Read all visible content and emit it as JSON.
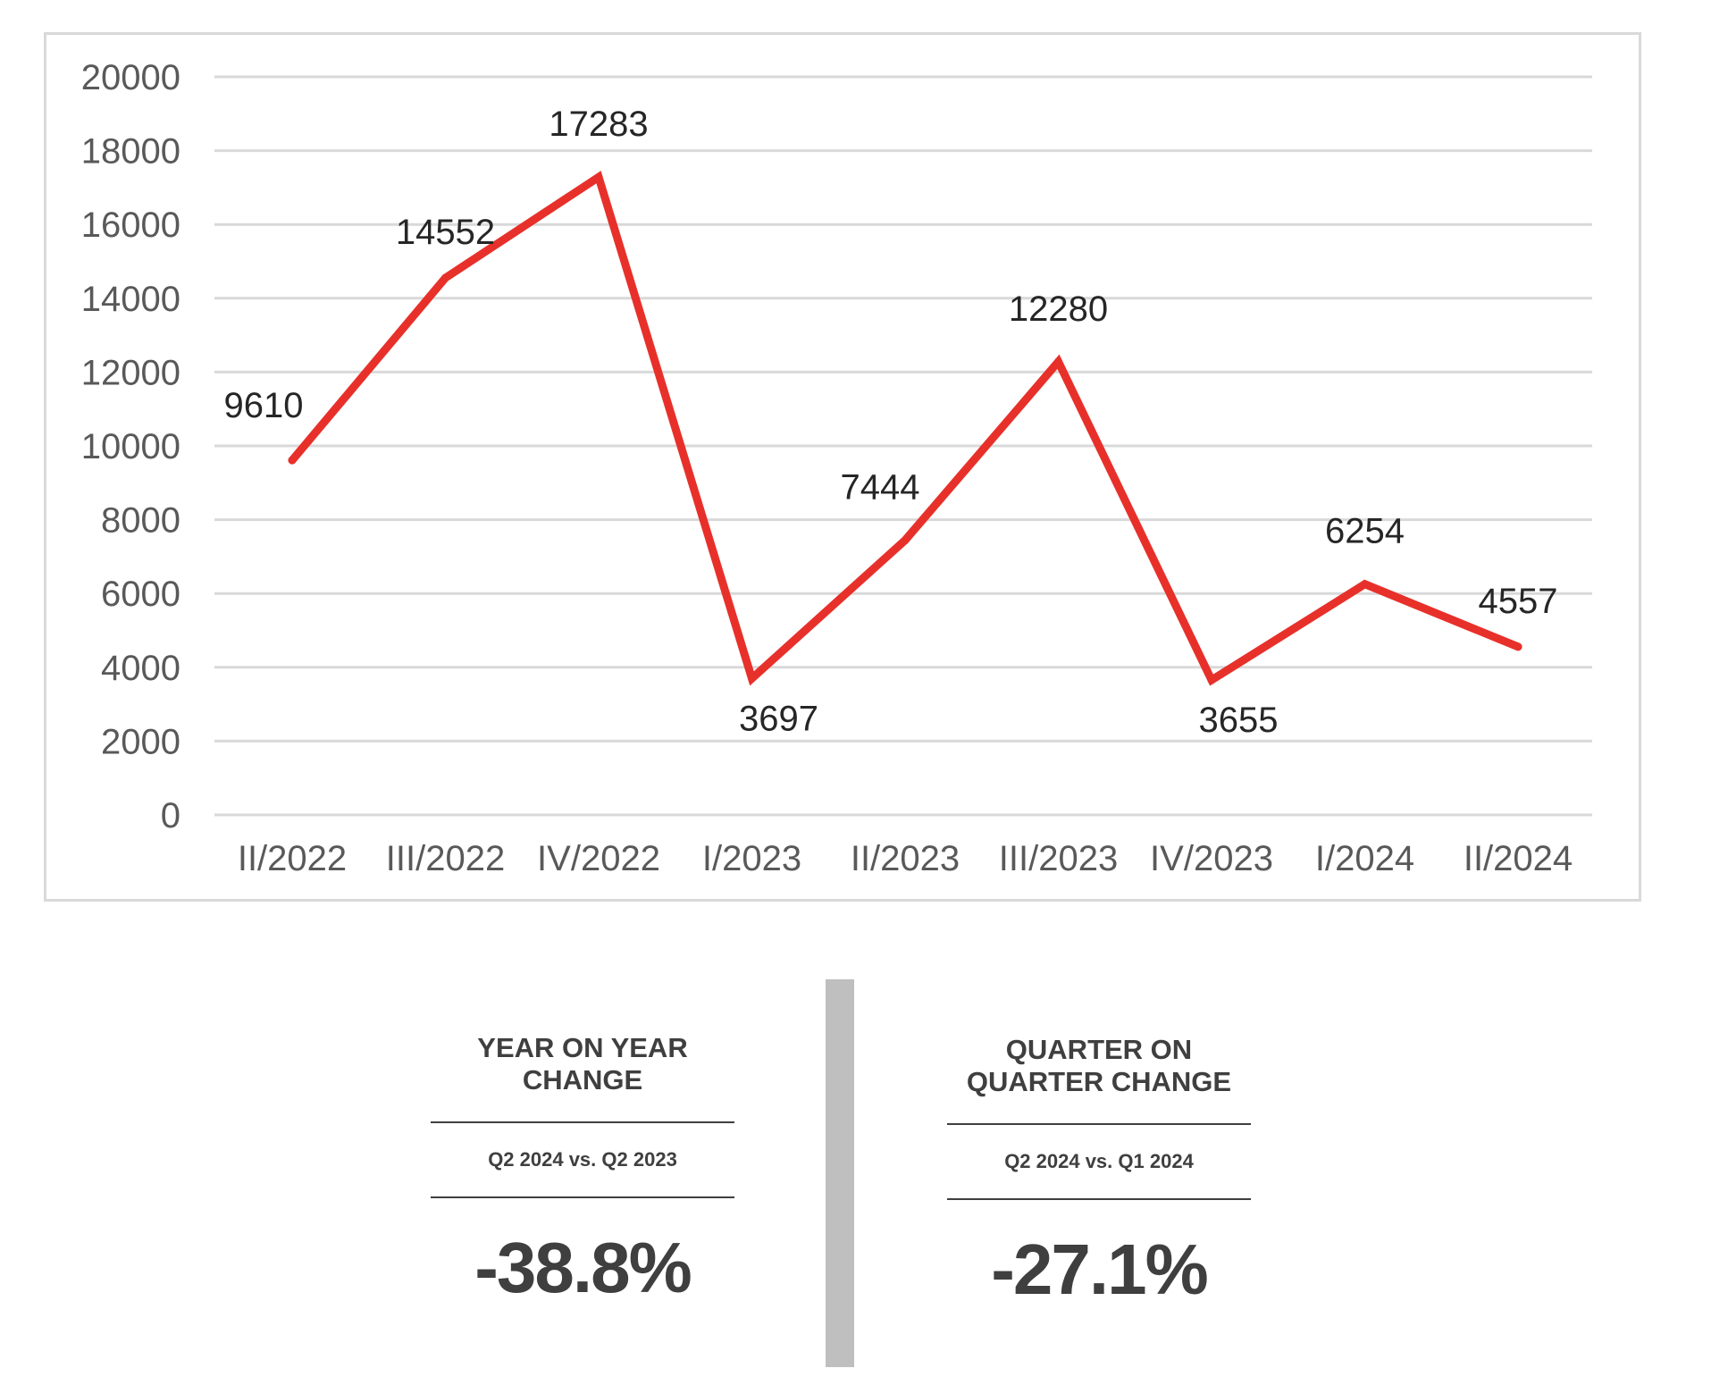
{
  "chart_data": {
    "type": "line",
    "categories": [
      "II/2022",
      "III/2022",
      "IV/2022",
      "I/2023",
      "II/2023",
      "III/2023",
      "IV/2023",
      "I/2024",
      "II/2024"
    ],
    "values": [
      9610,
      14552,
      17283,
      3697,
      7444,
      12280,
      3655,
      6254,
      4557
    ],
    "data_labels": [
      "9610",
      "14552",
      "17283",
      "3697",
      "7444",
      "12280",
      "3655",
      "6254",
      "4557"
    ],
    "yticks": [
      "0",
      "2000",
      "4000",
      "6000",
      "8000",
      "10000",
      "12000",
      "14000",
      "16000",
      "18000",
      "20000"
    ],
    "ylim": [
      0,
      20000
    ],
    "grid": true,
    "legend": "none",
    "title": "",
    "xlabel": "",
    "ylabel": "",
    "line_color": "#e8302a",
    "grid_color": "#d9d9d9"
  },
  "stats": {
    "yoy": {
      "heading_line1": "YEAR ON YEAR",
      "heading_line2": "CHANGE",
      "comparison": "Q2 2024 vs. Q2 2023",
      "value": "-38.8%"
    },
    "qoq": {
      "heading_line1": "QUARTER ON",
      "heading_line2": "QUARTER CHANGE",
      "comparison": "Q2 2024 vs. Q1 2024",
      "value": "-27.1%"
    }
  },
  "colors": {
    "divider": "#bfbfbf",
    "text": "#3f3f3f"
  }
}
